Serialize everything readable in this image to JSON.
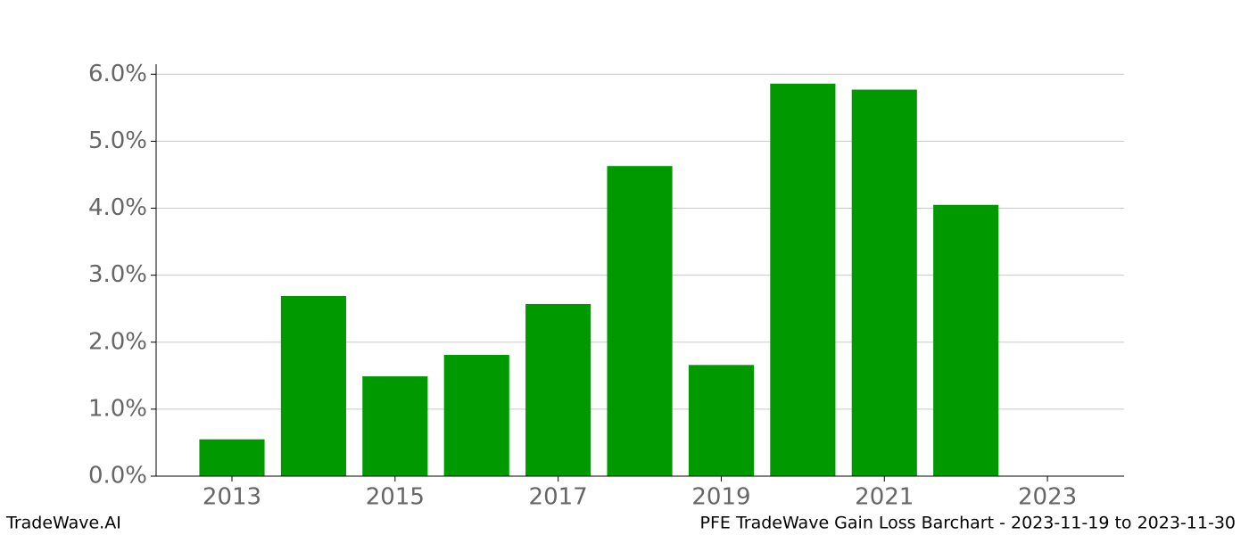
{
  "chart_data": {
    "type": "bar",
    "title": "PFE TradeWave Gain Loss Barchart - 2023-11-19 to 2023-11-30",
    "watermark": "TradeWave.AI",
    "x": [
      2013,
      2014,
      2015,
      2016,
      2017,
      2018,
      2019,
      2020,
      2021,
      2022
    ],
    "values": [
      0.55,
      2.69,
      1.49,
      1.81,
      2.57,
      4.63,
      1.66,
      5.86,
      5.77,
      4.05
    ],
    "color": "#009900",
    "xlim": [
      2012.07,
      2023.94
    ],
    "xticks": [
      2013,
      2015,
      2017,
      2019,
      2021,
      2023
    ],
    "ylim": [
      0,
      6.15
    ],
    "yticks": [
      {
        "value": 0,
        "label": "0.0%"
      },
      {
        "value": 1,
        "label": "1.0%"
      },
      {
        "value": 2,
        "label": "2.0%"
      },
      {
        "value": 3,
        "label": "3.0%"
      },
      {
        "value": 4,
        "label": "4.0%"
      },
      {
        "value": 5,
        "label": "5.0%"
      },
      {
        "value": 6,
        "label": "6.0%"
      }
    ],
    "grid": true
  }
}
